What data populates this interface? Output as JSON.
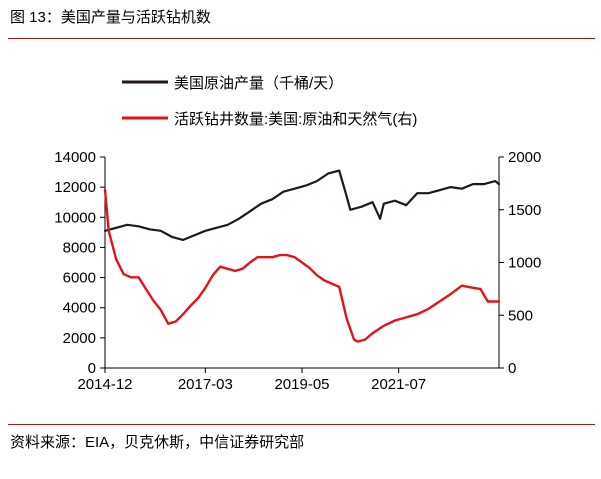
{
  "figure": {
    "title": "图 13：美国产量与活跃钻机数",
    "source": "资料来源：EIA，贝克休斯，中信证券研究部"
  },
  "colors": {
    "accent_rule": "#a3161b",
    "series_production": "#231815",
    "series_rigs": "#e5121a"
  },
  "chart_data": {
    "type": "line",
    "x_axis": {
      "type": "date",
      "range": [
        "2014-12",
        "2023-10"
      ],
      "ticks": [
        "2014-12",
        "2017-03",
        "2019-05",
        "2021-07"
      ]
    },
    "y_left": {
      "range": [
        0,
        14000
      ],
      "ticks": [
        0,
        2000,
        4000,
        6000,
        8000,
        10000,
        12000,
        14000
      ]
    },
    "y_right": {
      "range": [
        0,
        2000
      ],
      "ticks": [
        0,
        500,
        1000,
        1500,
        2000
      ]
    },
    "legend": "top-center",
    "grid": false,
    "series": [
      {
        "name": "美国原油产量（千桶/天）",
        "axis": "left",
        "color": "#231815",
        "x": [
          "2014-12",
          "2015-03",
          "2015-06",
          "2015-09",
          "2015-12",
          "2016-03",
          "2016-06",
          "2016-09",
          "2016-12",
          "2017-03",
          "2017-06",
          "2017-09",
          "2017-12",
          "2018-03",
          "2018-06",
          "2018-09",
          "2018-12",
          "2019-03",
          "2019-06",
          "2019-09",
          "2019-12",
          "2020-03",
          "2020-05",
          "2020-06",
          "2020-09",
          "2020-12",
          "2021-02",
          "2021-03",
          "2021-06",
          "2021-09",
          "2021-12",
          "2022-03",
          "2022-06",
          "2022-09",
          "2022-12",
          "2023-03",
          "2023-06",
          "2023-09",
          "2023-10"
        ],
        "values": [
          9100,
          9300,
          9500,
          9400,
          9200,
          9100,
          8700,
          8500,
          8800,
          9100,
          9300,
          9500,
          9900,
          10400,
          10900,
          11200,
          11700,
          11900,
          12100,
          12400,
          12900,
          13100,
          11400,
          10500,
          10700,
          11000,
          9900,
          10900,
          11100,
          10800,
          11600,
          11600,
          11800,
          12000,
          11900,
          12200,
          12200,
          12400,
          12200
        ]
      },
      {
        "name": "活跃钻井数量:美国:原油和天然气(右)",
        "axis": "right",
        "color": "#e5121a",
        "x": [
          "2014-12",
          "2015-01",
          "2015-03",
          "2015-05",
          "2015-07",
          "2015-09",
          "2015-11",
          "2016-01",
          "2016-03",
          "2016-05",
          "2016-07",
          "2016-09",
          "2016-11",
          "2017-01",
          "2017-03",
          "2017-05",
          "2017-07",
          "2017-09",
          "2017-11",
          "2018-01",
          "2018-03",
          "2018-05",
          "2018-07",
          "2018-09",
          "2018-11",
          "2019-01",
          "2019-03",
          "2019-05",
          "2019-07",
          "2019-09",
          "2019-11",
          "2020-01",
          "2020-03",
          "2020-05",
          "2020-07",
          "2020-08",
          "2020-10",
          "2020-12",
          "2021-03",
          "2021-06",
          "2021-09",
          "2021-12",
          "2022-03",
          "2022-06",
          "2022-09",
          "2022-12",
          "2023-03",
          "2023-05",
          "2023-07",
          "2023-10"
        ],
        "values": [
          1690,
          1300,
          1030,
          890,
          860,
          860,
          750,
          640,
          550,
          420,
          440,
          510,
          590,
          660,
          760,
          880,
          960,
          940,
          920,
          940,
          1000,
          1050,
          1050,
          1050,
          1070,
          1070,
          1050,
          1000,
          950,
          880,
          830,
          800,
          770,
          470,
          270,
          250,
          270,
          330,
          400,
          450,
          480,
          510,
          560,
          630,
          700,
          780,
          760,
          750,
          630,
          630
        ]
      }
    ]
  }
}
